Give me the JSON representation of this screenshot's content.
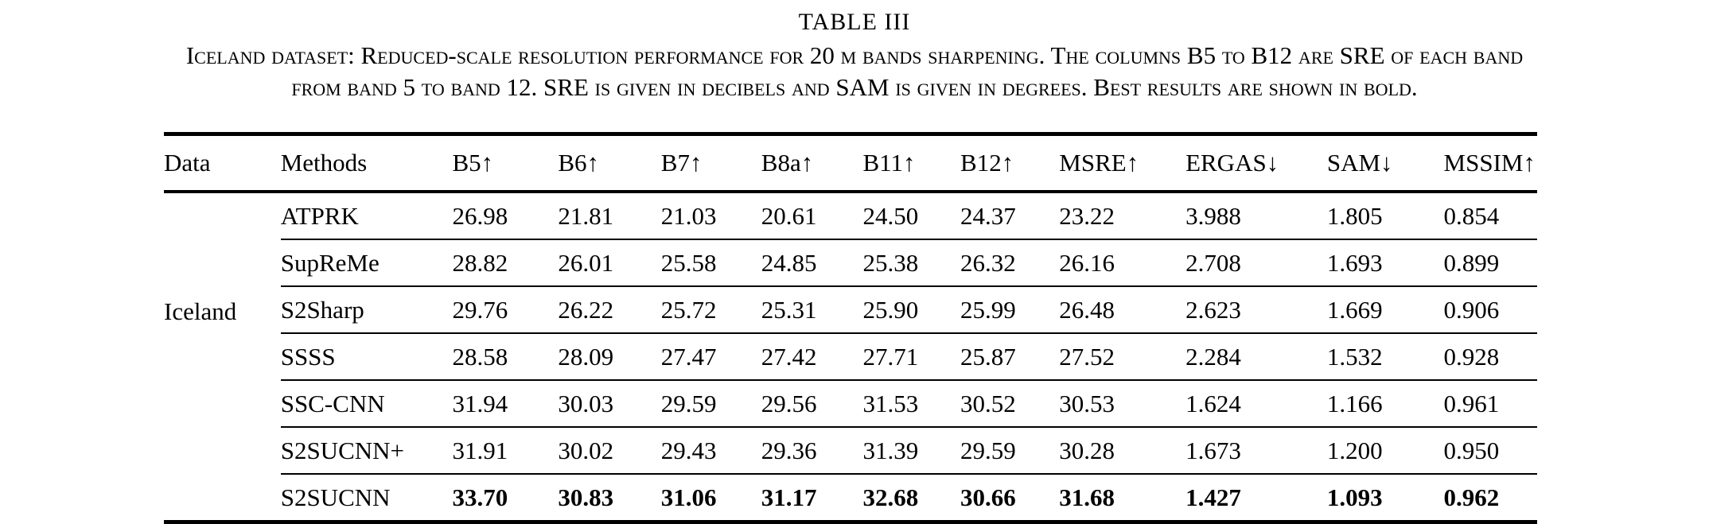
{
  "title": "TABLE III",
  "caption_lines": [
    "Iceland dataset: Reduced-scale resolution performance for 20 m bands sharpening. The columns B5 to B12 are SRE of each band",
    "from band 5 to band 12. SRE is given in decibels and SAM is given in degrees. Best results are shown in bold."
  ],
  "table": {
    "columns": [
      "Data",
      "Methods",
      "B5↑",
      "B6↑",
      "B7↑",
      "B8a↑",
      "B11↑",
      "B12↑",
      "MSRE↑",
      "ERGAS↓",
      "SAM↓",
      "MSSIM↑"
    ],
    "column_widths_pct": [
      8.5,
      12.5,
      7.7,
      7.5,
      7.3,
      7.4,
      7.1,
      7.2,
      9.2,
      10.3,
      8.5,
      6.8
    ],
    "data_label": "Iceland",
    "rows": [
      {
        "method": "ATPRK",
        "values": [
          "26.98",
          "21.81",
          "21.03",
          "20.61",
          "24.50",
          "24.37",
          "23.22",
          "3.988",
          "1.805",
          "0.854"
        ],
        "bold": false
      },
      {
        "method": "SupReMe",
        "values": [
          "28.82",
          "26.01",
          "25.58",
          "24.85",
          "25.38",
          "26.32",
          "26.16",
          "2.708",
          "1.693",
          "0.899"
        ],
        "bold": false
      },
      {
        "method": "S2Sharp",
        "values": [
          "29.76",
          "26.22",
          "25.72",
          "25.31",
          "25.90",
          "25.99",
          "26.48",
          "2.623",
          "1.669",
          "0.906"
        ],
        "bold": false
      },
      {
        "method": "SSSS",
        "values": [
          "28.58",
          "28.09",
          "27.47",
          "27.42",
          "27.71",
          "25.87",
          "27.52",
          "2.284",
          "1.532",
          "0.928"
        ],
        "bold": false
      },
      {
        "method": "SSC-CNN",
        "values": [
          "31.94",
          "30.03",
          "29.59",
          "29.56",
          "31.53",
          "30.52",
          "30.53",
          "1.624",
          "1.166",
          "0.961"
        ],
        "bold": false
      },
      {
        "method": "S2SUCNN+",
        "values": [
          "31.91",
          "30.02",
          "29.43",
          "29.36",
          "31.39",
          "29.59",
          "30.28",
          "1.673",
          "1.200",
          "0.950"
        ],
        "bold": false
      },
      {
        "method": "S2SUCNN",
        "values": [
          "33.70",
          "30.83",
          "31.06",
          "31.17",
          "32.68",
          "30.66",
          "31.68",
          "1.427",
          "1.093",
          "0.962"
        ],
        "bold": true
      }
    ]
  },
  "colors": {
    "text": "#000000",
    "background": "#ffffff",
    "rule": "#000000"
  }
}
